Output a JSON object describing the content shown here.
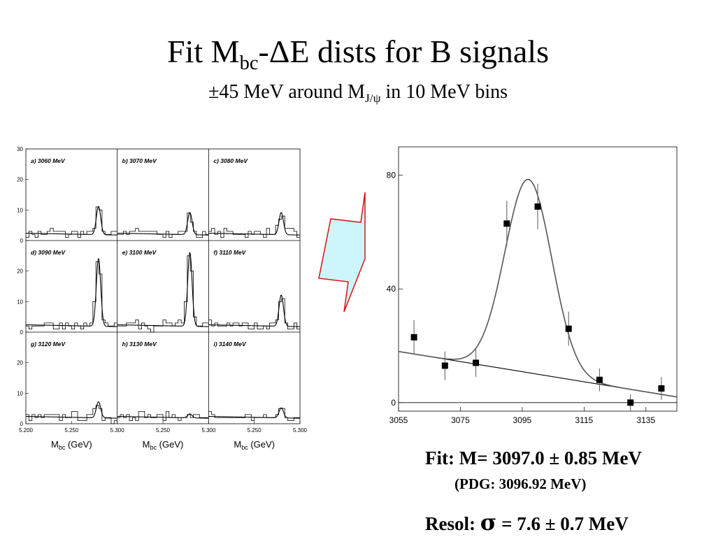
{
  "title": {
    "prefix": "Fit M",
    "sub": "bc",
    "dash": "-",
    "delta": "Δ",
    "suffix": "E dists for B signals"
  },
  "subtitle": {
    "prefix": "±45 MeV around M",
    "sub": "J/ψ",
    "suffix": " in 10 MeV bins"
  },
  "arrow": {
    "fill": "#ccf6fb",
    "stroke": "#dd1111"
  },
  "results": {
    "fit": "Fit: M= 3097.0 ± 0.85 MeV",
    "pdg": "(PDG: 3096.92 MeV)",
    "resol_prefix": "Resol: ",
    "sigma": "σ",
    "resol_suffix": " = 7.6 ± 0.7 MeV"
  },
  "chart_data": [
    {
      "type": "histogram-grid",
      "xlabel_main": "M",
      "xlabel_sub": "bc",
      "xlabel_unit": " (GeV)",
      "xlim": [
        5.2,
        5.3
      ],
      "x_ticks": [
        "5.200",
        "5.250",
        "5.300"
      ],
      "ylim": [
        0,
        30
      ],
      "y_ticks": [
        "0",
        "10",
        "20",
        "30"
      ],
      "panels": [
        {
          "label": "a) 3060 MeV",
          "peak": 9
        },
        {
          "label": "b) 3070 MeV",
          "peak": 7
        },
        {
          "label": "c) 3080 MeV",
          "peak": 7
        },
        {
          "label": "d) 3090 MeV",
          "peak": 22
        },
        {
          "label": "e) 3100 MeV",
          "peak": 24
        },
        {
          "label": "f) 3110 MeV",
          "peak": 10
        },
        {
          "label": "g) 3120 MeV",
          "peak": 5
        },
        {
          "label": "h) 3130 MeV",
          "peak": 1
        },
        {
          "label": "i) 3140 MeV",
          "peak": 3
        }
      ]
    },
    {
      "type": "scatter",
      "xlim": [
        3055,
        3145
      ],
      "ylim": [
        -3,
        90
      ],
      "x_ticks": [
        3055,
        3075,
        3095,
        3115,
        3135
      ],
      "y_ticks": [
        0,
        40,
        80
      ],
      "points": [
        {
          "x": 3060,
          "y": 23,
          "err": 6
        },
        {
          "x": 3070,
          "y": 13,
          "err": 5
        },
        {
          "x": 3080,
          "y": 14,
          "err": 5
        },
        {
          "x": 3090,
          "y": 63,
          "err": 8
        },
        {
          "x": 3100,
          "y": 69,
          "err": 8
        },
        {
          "x": 3110,
          "y": 26,
          "err": 6
        },
        {
          "x": 3120,
          "y": 8,
          "err": 4
        },
        {
          "x": 3130,
          "y": 0,
          "err": 3
        },
        {
          "x": 3140,
          "y": 5,
          "err": 4
        }
      ],
      "fit": {
        "mean": 3097.0,
        "sigma": 7.6,
        "amplitude": 68,
        "bg_left": 18,
        "bg_right": 2
      }
    }
  ]
}
